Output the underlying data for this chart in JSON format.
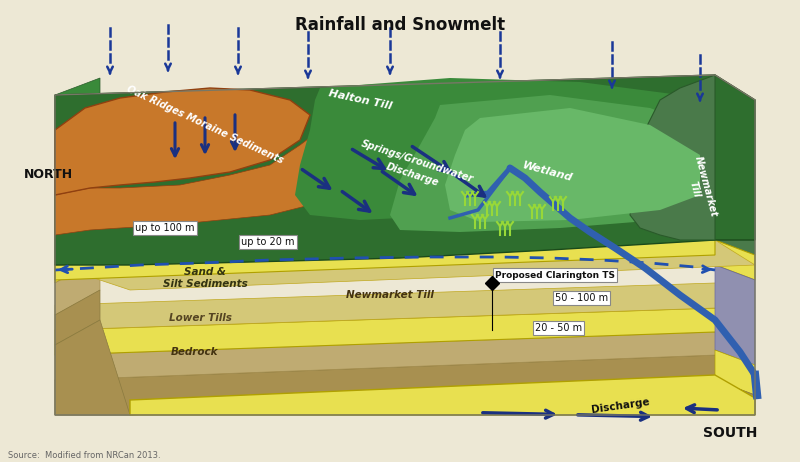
{
  "bg_color": "#ede8d5",
  "title": "Rainfall and Snowmelt",
  "title_fontsize": 12,
  "source_text": "Source:  Modified from NRCan 2013.",
  "colors": {
    "bedrock": "#a89050",
    "lower_tills": "#bfab72",
    "sand_silt": "#d4c878",
    "newmarket_yellow": "#e8e050",
    "oak_ridges": "#c8782a",
    "halton_dark": "#2e6e2e",
    "halton_mid": "#3a8a3a",
    "halton_light": "#50a050",
    "wetland_light": "#68b868",
    "newmarket_right": "#4a7a4a",
    "river_blue": "#3060b0",
    "arrow_blue": "#1a3080",
    "dashed_blue": "#2050b0",
    "purple_grey": "#9090b0",
    "left_face_green": "#6a9a5a",
    "left_face_tan": "#c8b870"
  },
  "labels": {
    "north": "NORTH",
    "south": "SOUTH",
    "up100": "up to 100 m",
    "up20": "up to 20 m",
    "oak_ridges": "Oak Ridges Moraine Sediments",
    "halton_till": "Halton Till",
    "springs": "Springs/Groundwater\nDischarge",
    "wetland": "Wetland",
    "sand_silt": "Sand &\nSilt Sediments",
    "lower_tills": "Lower Tills",
    "bedrock": "Bedrock",
    "newmarket_till": "Newmarket Till",
    "newmarket_side": "Newmarket\nTill",
    "proposed": "Proposed Clarington TS",
    "depth1": "50 - 100 m",
    "depth2": "20 - 50 m",
    "discharge": "Discharge"
  }
}
